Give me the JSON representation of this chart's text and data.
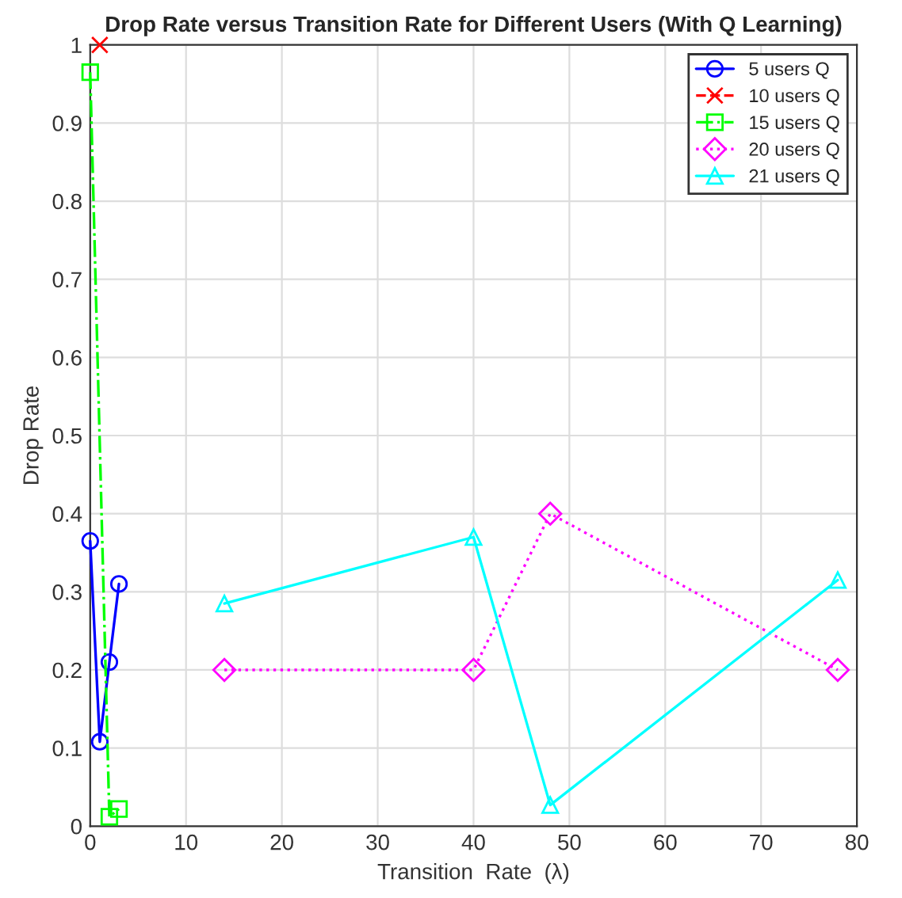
{
  "chart_data": {
    "type": "line",
    "title": "Drop Rate versus Transition Rate for Different Users (With Q Learning)",
    "xlabel": "Transition  Rate  (λ)",
    "ylabel": "Drop Rate",
    "series": [
      {
        "name": "5 users Q",
        "color": "#0000ff",
        "x": [
          0,
          1,
          2,
          3
        ],
        "values": [
          0.365,
          0.108,
          0.21,
          0.31
        ],
        "marker": "circle",
        "line_style": "solid"
      },
      {
        "name": "10 users Q",
        "color": "#ff0000",
        "x": [
          1
        ],
        "values": [
          1
        ],
        "marker": "cross",
        "line_style": "dashed"
      },
      {
        "name": "15 users Q",
        "color": "#00ff00",
        "x": [
          0,
          2,
          3
        ],
        "values": [
          0.965,
          0.012,
          0.022
        ],
        "marker": "square",
        "line_style": "dashdot"
      },
      {
        "name": "20 users Q",
        "color": "#ff00ff",
        "x": [
          14,
          40,
          48,
          78
        ],
        "values": [
          0.2,
          0.2,
          0.4,
          0.2
        ],
        "marker": "diamond",
        "line_style": "dotted"
      },
      {
        "name": "21 users Q",
        "color": "#00ffff",
        "x": [
          14,
          40,
          48,
          78
        ],
        "values": [
          0.285,
          0.37,
          0.027,
          0.315
        ],
        "marker": "triangle",
        "line_style": "solid"
      }
    ],
    "xlim": [
      0,
      80
    ],
    "xticks": [
      0,
      10,
      20,
      30,
      40,
      50,
      60,
      70,
      80
    ],
    "ylim": [
      0,
      1
    ],
    "yticks": [
      0,
      0.1,
      0.2,
      0.3,
      0.4,
      0.5,
      0.6,
      0.7,
      0.8,
      0.9,
      1
    ],
    "grid": true,
    "legend": "top right"
  }
}
